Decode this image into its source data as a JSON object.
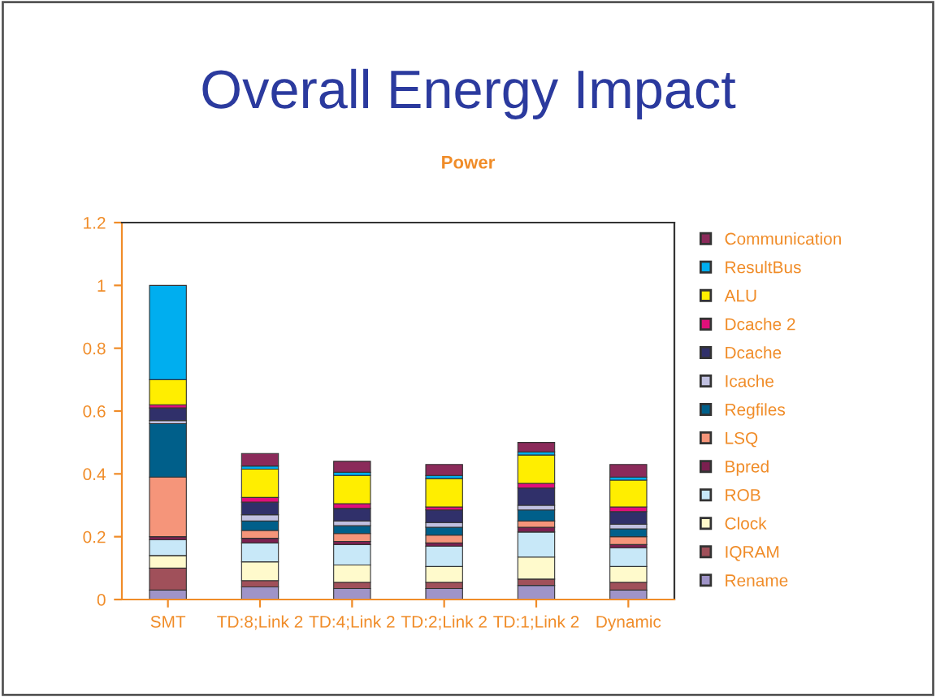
{
  "chart_data": {
    "type": "bar",
    "stacked": true,
    "title": "Overall Energy Impact",
    "subtitle": "Power",
    "categories": [
      "SMT",
      "TD:8;Link 2",
      "TD:4;Link 2",
      "TD:2;Link 2",
      "TD:1;Link 2",
      "Dynamic"
    ],
    "ylim": [
      0,
      1.2
    ],
    "yticks": [
      0,
      0.2,
      0.4,
      0.6,
      0.8,
      1,
      1.2
    ],
    "grid": false,
    "legend": "right",
    "series": [
      {
        "name": "Rename",
        "color": "#9f94c8",
        "values": [
          0.03,
          0.04,
          0.035,
          0.035,
          0.045,
          0.03
        ]
      },
      {
        "name": "IQRAM",
        "color": "#a0505a",
        "values": [
          0.07,
          0.02,
          0.02,
          0.02,
          0.02,
          0.025
        ]
      },
      {
        "name": "Clock",
        "color": "#fffacc",
        "values": [
          0.04,
          0.06,
          0.055,
          0.05,
          0.07,
          0.05
        ]
      },
      {
        "name": "ROB",
        "color": "#c8e8f8",
        "values": [
          0.05,
          0.06,
          0.065,
          0.065,
          0.08,
          0.06
        ]
      },
      {
        "name": "Bpred",
        "color": "#7b2050",
        "values": [
          0.01,
          0.015,
          0.01,
          0.01,
          0.015,
          0.01
        ]
      },
      {
        "name": "LSQ",
        "color": "#f5957a",
        "values": [
          0.19,
          0.025,
          0.025,
          0.025,
          0.02,
          0.025
        ]
      },
      {
        "name": "Regfiles",
        "color": "#005f8a",
        "values": [
          0.17,
          0.03,
          0.025,
          0.025,
          0.035,
          0.025
        ]
      },
      {
        "name": "Icache",
        "color": "#c0c0e0",
        "values": [
          0.01,
          0.02,
          0.015,
          0.015,
          0.015,
          0.015
        ]
      },
      {
        "name": "Dcache",
        "color": "#30306a",
        "values": [
          0.04,
          0.04,
          0.04,
          0.04,
          0.055,
          0.04
        ]
      },
      {
        "name": "Dcache 2",
        "color": "#e0107a",
        "values": [
          0.01,
          0.015,
          0.015,
          0.01,
          0.015,
          0.015
        ]
      },
      {
        "name": "ALU",
        "color": "#ffee00",
        "values": [
          0.08,
          0.09,
          0.09,
          0.09,
          0.09,
          0.085
        ]
      },
      {
        "name": "ResultBus",
        "color": "#00aeef",
        "values": [
          0.3,
          0.01,
          0.01,
          0.01,
          0.01,
          0.01
        ]
      },
      {
        "name": "Communication",
        "color": "#8b2a5a",
        "values": [
          null,
          0.04,
          0.035,
          0.035,
          0.03,
          0.04
        ]
      }
    ]
  }
}
